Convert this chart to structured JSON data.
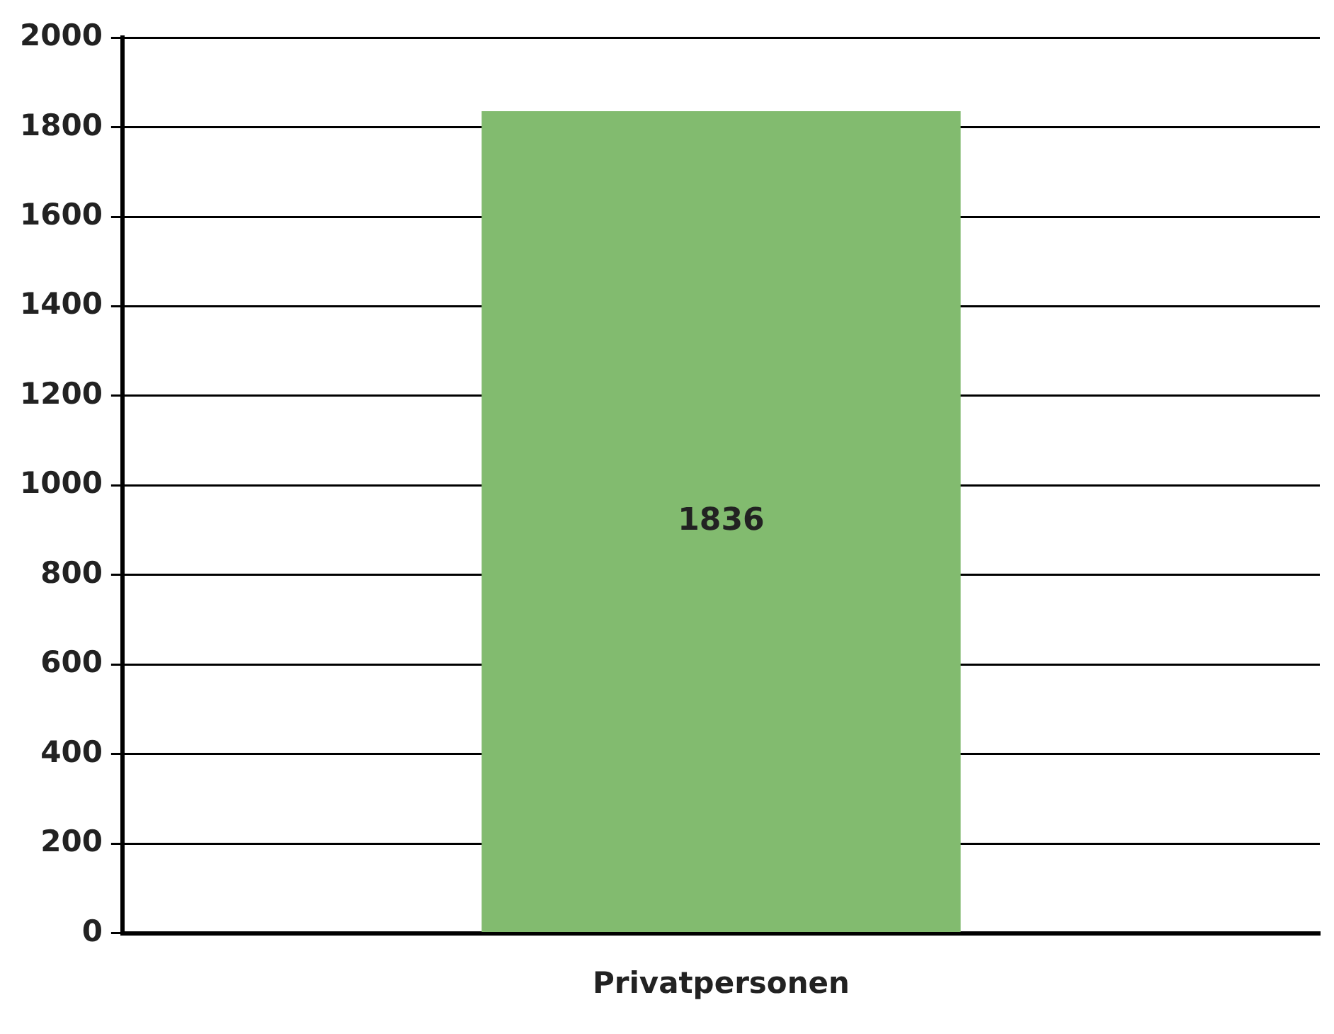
{
  "chart_data": {
    "type": "bar",
    "categories": [
      "Privatpersonen"
    ],
    "values": [
      1836
    ],
    "color": "#82bb6f",
    "ylim": [
      0,
      2000
    ],
    "yticks": [
      0,
      200,
      400,
      600,
      800,
      1000,
      1200,
      1400,
      1600,
      1800,
      2000
    ],
    "grid": "y",
    "data_labels": true,
    "legend": false
  }
}
